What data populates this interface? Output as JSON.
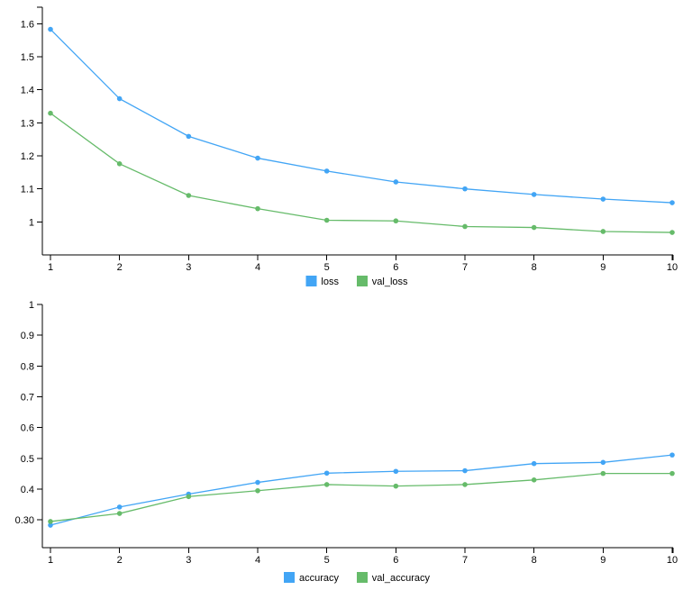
{
  "colors": {
    "train": "#42a5f5",
    "validation": "#66bb6a"
  },
  "chart_data": [
    {
      "type": "line",
      "x": [
        1,
        2,
        3,
        4,
        5,
        6,
        7,
        8,
        9,
        10
      ],
      "xticks": [
        "1",
        "2",
        "3",
        "4",
        "5",
        "6",
        "7",
        "8",
        "9",
        "10"
      ],
      "ylim": [
        0.9,
        1.65
      ],
      "yticks": [
        {
          "v": 1.0,
          "label": "1"
        },
        {
          "v": 1.1,
          "label": "1.1"
        },
        {
          "v": 1.2,
          "label": "1.2"
        },
        {
          "v": 1.3,
          "label": "1.3"
        },
        {
          "v": 1.4,
          "label": "1.4"
        },
        {
          "v": 1.5,
          "label": "1.5"
        },
        {
          "v": 1.6,
          "label": "1.6"
        }
      ],
      "grid": false,
      "legend_position": "bottom",
      "series": [
        {
          "name": "loss",
          "color": "#42a5f5",
          "values": [
            1.583,
            1.373,
            1.259,
            1.193,
            1.154,
            1.121,
            1.1,
            1.083,
            1.069,
            1.058
          ]
        },
        {
          "name": "val_loss",
          "color": "#66bb6a",
          "values": [
            1.329,
            1.176,
            1.08,
            1.04,
            1.005,
            1.003,
            0.986,
            0.983,
            0.971,
            0.968
          ]
        }
      ]
    },
    {
      "type": "line",
      "x": [
        1,
        2,
        3,
        4,
        5,
        6,
        7,
        8,
        9,
        10
      ],
      "xticks": [
        "1",
        "2",
        "3",
        "4",
        "5",
        "6",
        "7",
        "8",
        "9",
        "10"
      ],
      "ylim": [
        0.21,
        1.0
      ],
      "yticks": [
        {
          "v": 0.3,
          "label": "0.30"
        },
        {
          "v": 0.4,
          "label": "0.4"
        },
        {
          "v": 0.5,
          "label": "0.5"
        },
        {
          "v": 0.6,
          "label": "0.6"
        },
        {
          "v": 0.7,
          "label": "0.7"
        },
        {
          "v": 0.8,
          "label": "0.8"
        },
        {
          "v": 0.9,
          "label": "0.9"
        },
        {
          "v": 1.0,
          "label": "1"
        }
      ],
      "grid": false,
      "legend_position": "bottom",
      "series": [
        {
          "name": "accuracy",
          "color": "#42a5f5",
          "values": [
            0.283,
            0.342,
            0.384,
            0.422,
            0.452,
            0.458,
            0.46,
            0.483,
            0.487,
            0.511
          ]
        },
        {
          "name": "val_accuracy",
          "color": "#66bb6a",
          "values": [
            0.295,
            0.321,
            0.376,
            0.395,
            0.415,
            0.41,
            0.415,
            0.43,
            0.451,
            0.451
          ]
        }
      ]
    }
  ]
}
